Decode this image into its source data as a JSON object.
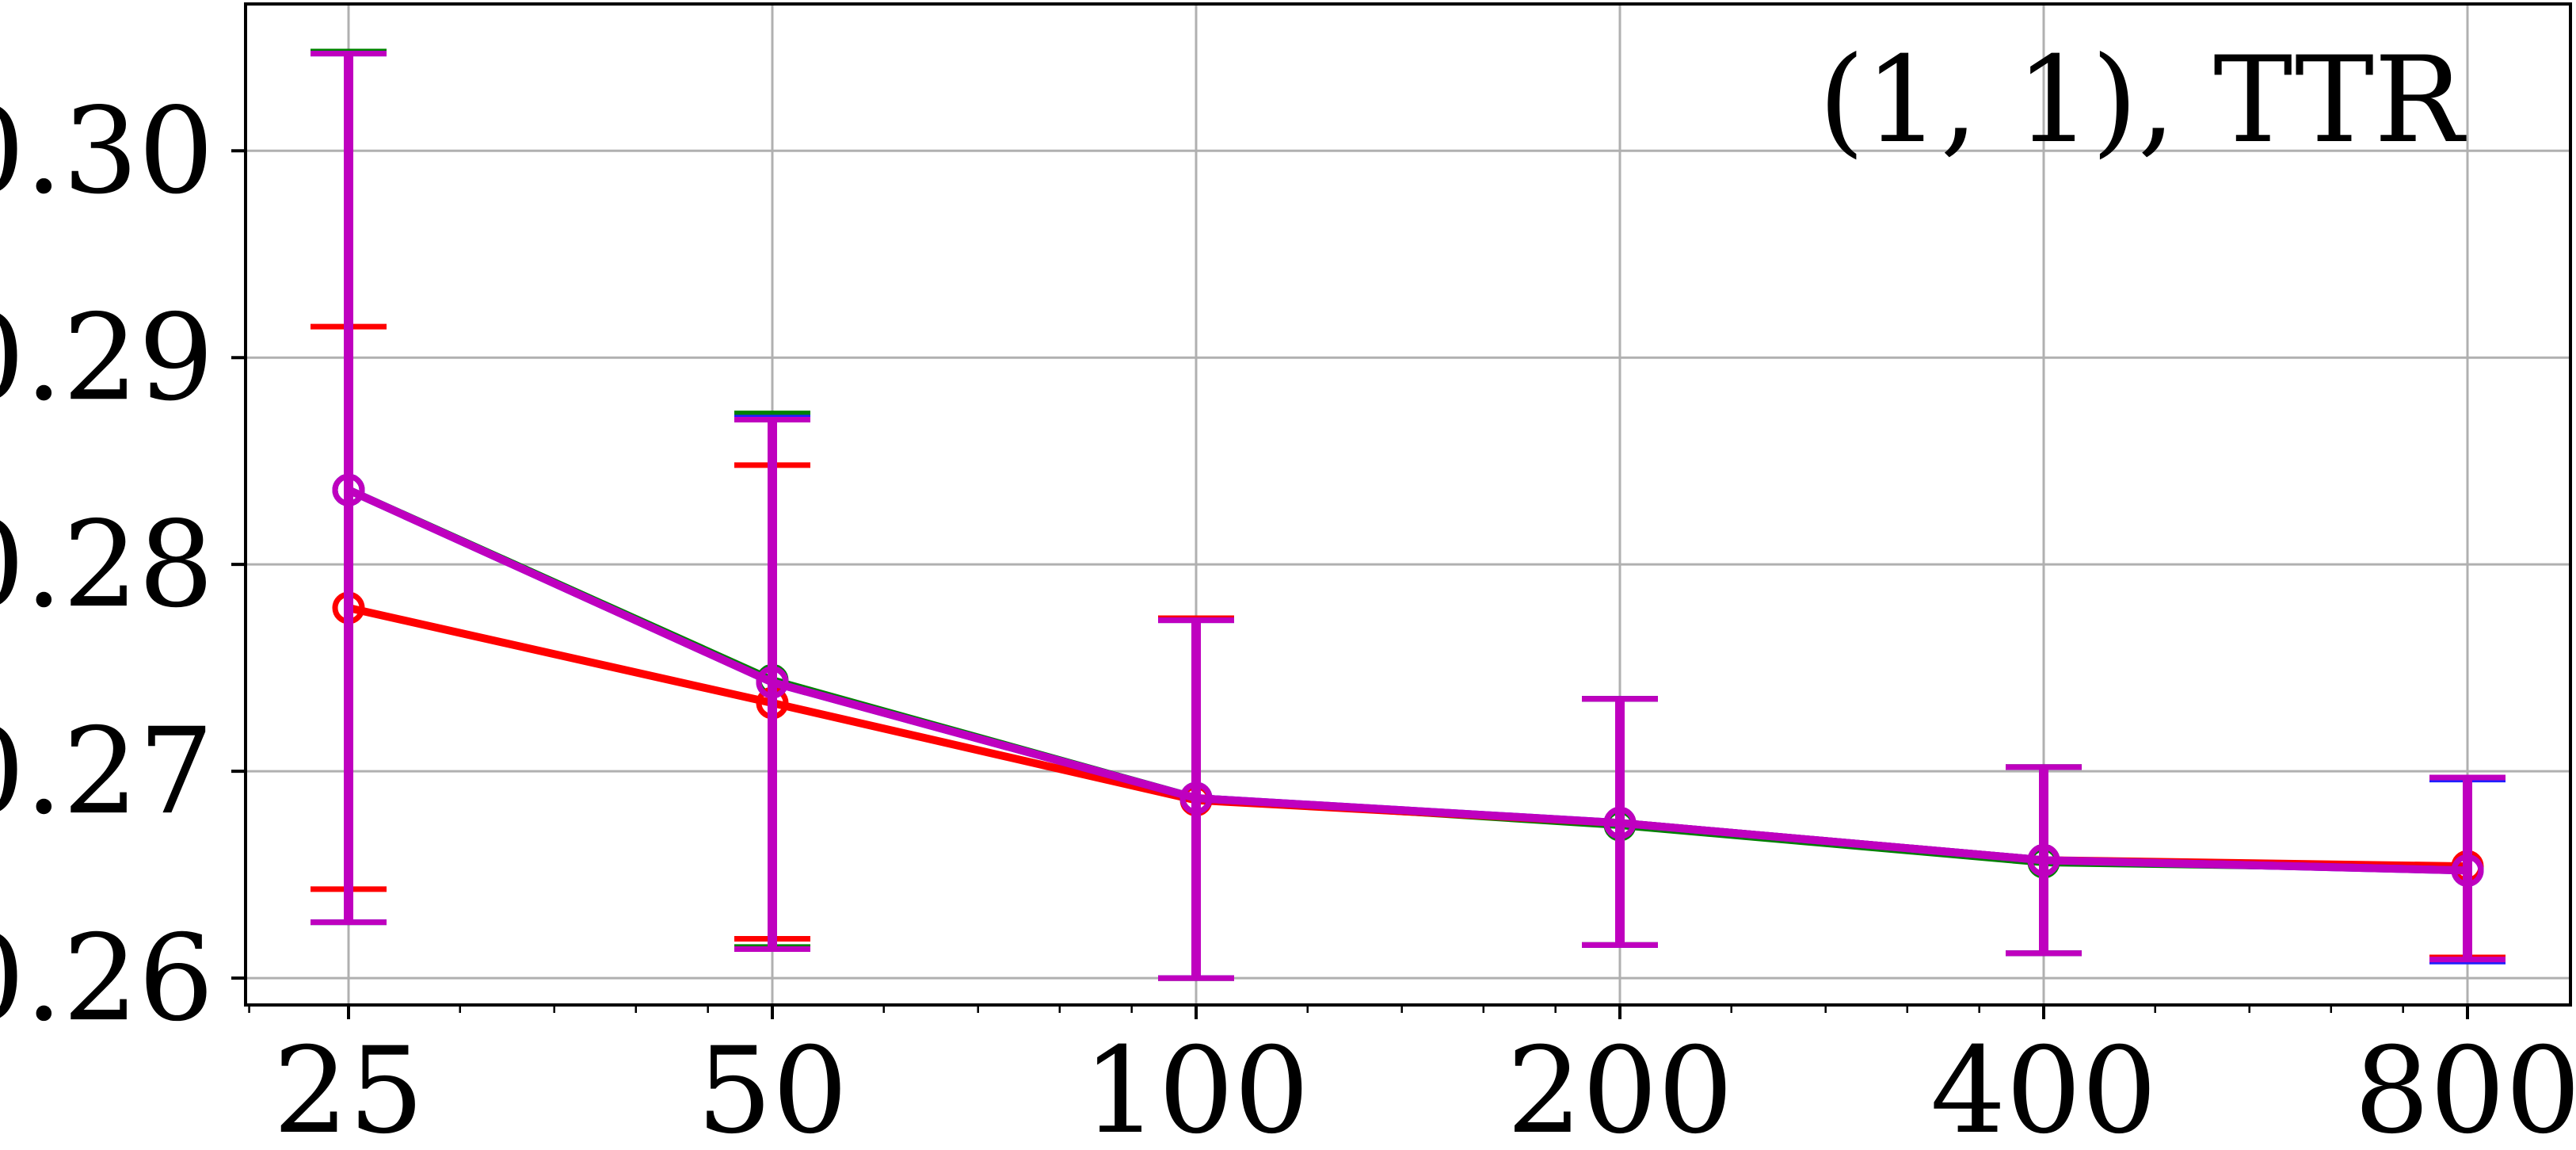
{
  "chart_data": {
    "type": "line",
    "annotation": "(1, 1), TTR",
    "x_scale": "log2",
    "x": [
      25,
      50,
      100,
      200,
      400,
      800
    ],
    "x_tick_labels": [
      "25",
      "50",
      "100",
      "200",
      "400",
      "800"
    ],
    "y_tick_values": [
      0.26,
      0.27,
      0.28,
      0.29,
      0.3
    ],
    "y_tick_labels": [
      "0.26",
      "0.27",
      "0.28",
      "0.29",
      "0.30"
    ],
    "ylim": [
      0.2587,
      0.3071
    ],
    "grid": true,
    "series": [
      {
        "color": "#008000",
        "values": [
          0.2836,
          0.2744,
          0.2687,
          0.2674,
          0.2656,
          0.2653
        ],
        "err_low": [
          0.2627,
          0.2615,
          0.26,
          0.2616,
          0.2612,
          0.2609
        ],
        "err_high": [
          0.3048,
          0.2873,
          0.2774,
          0.2735,
          0.2702,
          0.2697
        ]
      },
      {
        "color": "#ff0000",
        "values": [
          0.2779,
          0.2733,
          0.2686,
          0.2675,
          0.2657,
          0.2654
        ],
        "err_low": [
          0.2643,
          0.2619,
          0.26,
          0.2616,
          0.2612,
          0.261
        ],
        "err_high": [
          0.2915,
          0.2848,
          0.2774,
          0.2735,
          0.2702,
          0.2697
        ]
      },
      {
        "color": "#1f1fff",
        "values": [
          0.2836,
          0.2743,
          0.2687,
          0.2675,
          0.2657,
          0.2652
        ],
        "err_low": [
          0.2627,
          0.2614,
          0.26,
          0.2616,
          0.2612,
          0.2608
        ],
        "err_high": [
          0.3047,
          0.2871,
          0.2773,
          0.2735,
          0.2702,
          0.2696
        ]
      },
      {
        "color": "#bf00bf",
        "values": [
          0.2836,
          0.2743,
          0.2687,
          0.2675,
          0.2657,
          0.2652
        ],
        "err_low": [
          0.2627,
          0.2614,
          0.26,
          0.2616,
          0.2612,
          0.2609
        ],
        "err_high": [
          0.3047,
          0.287,
          0.2773,
          0.2735,
          0.2702,
          0.2697
        ]
      }
    ]
  }
}
